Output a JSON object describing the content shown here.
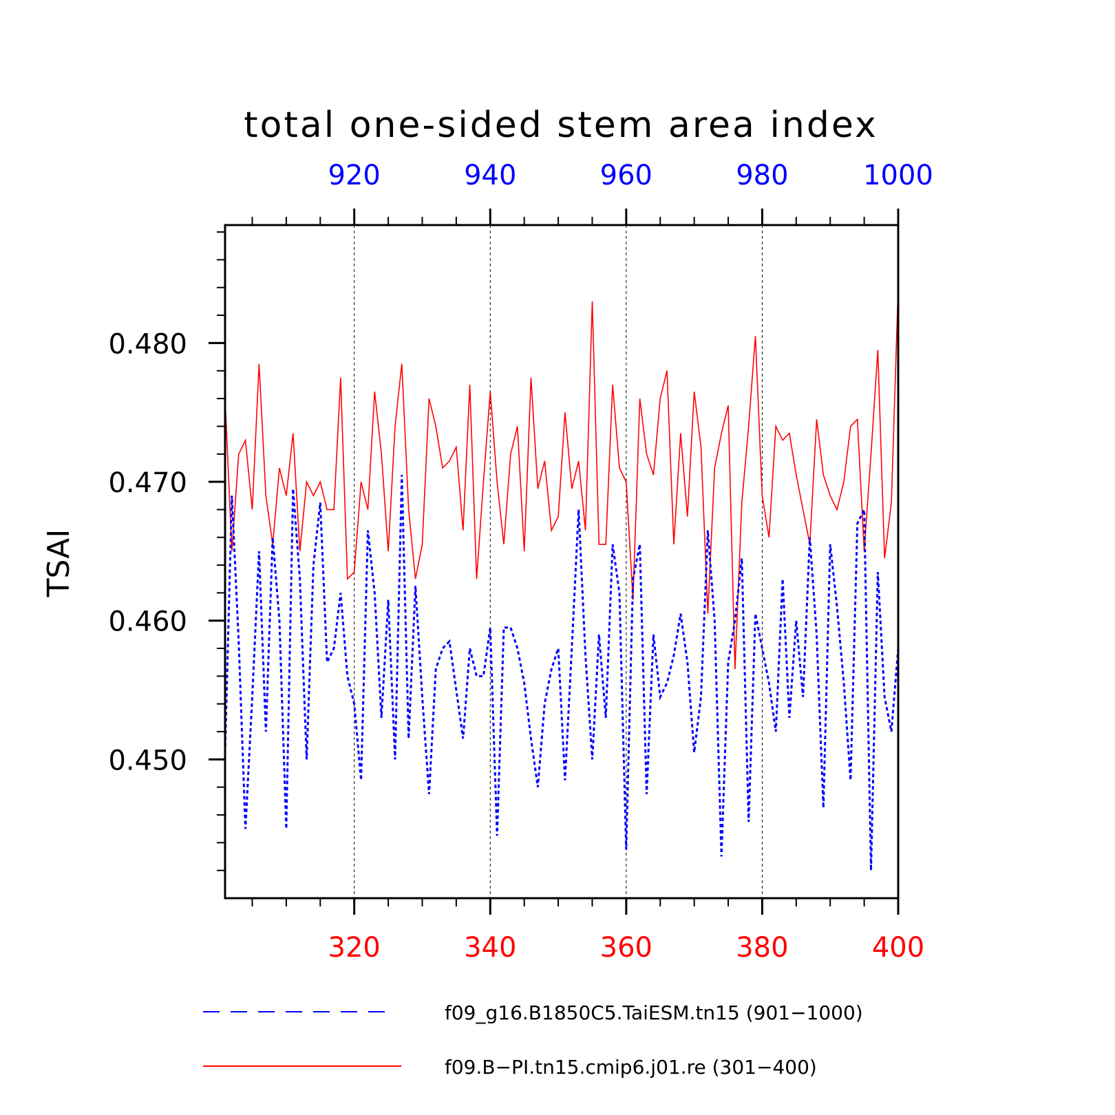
{
  "chart_data": {
    "type": "line",
    "title": "total one-sided stem area index",
    "ylabel": "TSAI",
    "ylim": [
      0.44,
      0.4885
    ],
    "yticks": [
      "0.450",
      "0.460",
      "0.470",
      "0.480"
    ],
    "x_bottom": {
      "lim": [
        301,
        400
      ],
      "ticks": [
        "320",
        "340",
        "360",
        "380",
        "400"
      ],
      "color": "#ff0000"
    },
    "x_top": {
      "lim": [
        901,
        1000
      ],
      "ticks": [
        "920",
        "940",
        "960",
        "980",
        "1000"
      ],
      "color": "#0000ff"
    },
    "grid": "vertical dashed at major ticks",
    "legend_position": "bottom",
    "series": [
      {
        "name": "f09_g16.B1850C5.TaiESM.tn15 (901−1000)",
        "axis": "top",
        "color": "#0000ff",
        "style": "dashed",
        "x_start": 901,
        "values": [
          0.4505,
          0.469,
          0.4585,
          0.445,
          0.4545,
          0.465,
          0.452,
          0.466,
          0.46,
          0.445,
          0.4695,
          0.463,
          0.45,
          0.464,
          0.4685,
          0.457,
          0.458,
          0.462,
          0.456,
          0.454,
          0.4485,
          0.4665,
          0.462,
          0.453,
          0.4615,
          0.45,
          0.4705,
          0.4515,
          0.4625,
          0.4545,
          0.4475,
          0.4565,
          0.458,
          0.4585,
          0.455,
          0.4515,
          0.458,
          0.456,
          0.456,
          0.4595,
          0.4445,
          0.4595,
          0.4595,
          0.458,
          0.4555,
          0.4515,
          0.448,
          0.454,
          0.4565,
          0.458,
          0.4485,
          0.458,
          0.468,
          0.4575,
          0.45,
          0.459,
          0.453,
          0.4655,
          0.462,
          0.4435,
          0.463,
          0.4655,
          0.4475,
          0.459,
          0.4545,
          0.4555,
          0.4575,
          0.4605,
          0.457,
          0.4505,
          0.4545,
          0.4665,
          0.46,
          0.443,
          0.457,
          0.46,
          0.4645,
          0.4455,
          0.4605,
          0.458,
          0.4555,
          0.452,
          0.463,
          0.453,
          0.46,
          0.4545,
          0.466,
          0.459,
          0.4465,
          0.4655,
          0.461,
          0.4555,
          0.4485,
          0.467,
          0.468,
          0.442,
          0.4635,
          0.4545,
          0.452,
          0.458
        ]
      },
      {
        "name": "f09.B−PI.tn15.cmip6.j01.re (301−400)",
        "axis": "bottom",
        "color": "#ff0000",
        "style": "solid",
        "x_start": 301,
        "values": [
          0.476,
          0.465,
          0.472,
          0.473,
          0.468,
          0.4785,
          0.469,
          0.4655,
          0.471,
          0.469,
          0.4735,
          0.465,
          0.47,
          0.469,
          0.47,
          0.468,
          0.468,
          0.4775,
          0.463,
          0.4635,
          0.47,
          0.468,
          0.4765,
          0.472,
          0.465,
          0.474,
          0.4785,
          0.468,
          0.463,
          0.4655,
          0.476,
          0.474,
          0.471,
          0.4715,
          0.4725,
          0.4665,
          0.477,
          0.463,
          0.47,
          0.4765,
          0.47,
          0.4655,
          0.472,
          0.474,
          0.465,
          0.4775,
          0.4695,
          0.4715,
          0.4665,
          0.4675,
          0.475,
          0.4695,
          0.4715,
          0.4665,
          0.483,
          0.4655,
          0.4655,
          0.477,
          0.471,
          0.47,
          0.4615,
          0.476,
          0.472,
          0.4705,
          0.476,
          0.478,
          0.4655,
          0.4735,
          0.4675,
          0.4765,
          0.4725,
          0.4605,
          0.471,
          0.4735,
          0.4755,
          0.4565,
          0.4685,
          0.474,
          0.4805,
          0.469,
          0.466,
          0.474,
          0.473,
          0.4735,
          0.4705,
          0.468,
          0.4655,
          0.4745,
          0.4705,
          0.469,
          0.468,
          0.47,
          0.474,
          0.4745,
          0.465,
          0.472,
          0.4795,
          0.4645,
          0.4685,
          0.484
        ]
      }
    ]
  }
}
